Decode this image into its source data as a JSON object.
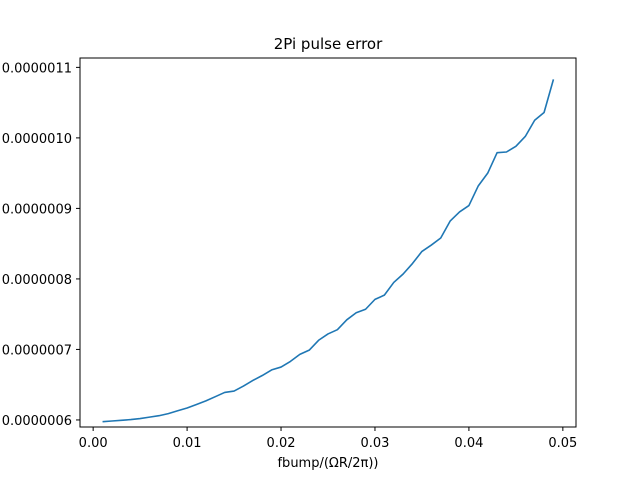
{
  "chart_data": {
    "type": "line",
    "title": "2Pi pulse error",
    "xlabel": "fbump/(ΩR/2π))",
    "ylabel": "",
    "xlim": [
      -0.0014,
      0.0514
    ],
    "ylim": [
      5.9e-07,
      1.1133e-06
    ],
    "grid": false,
    "legend": "none",
    "x_ticks": [
      {
        "value": 0.0,
        "label": "0.00"
      },
      {
        "value": 0.01,
        "label": "0.01"
      },
      {
        "value": 0.02,
        "label": "0.02"
      },
      {
        "value": 0.03,
        "label": "0.03"
      },
      {
        "value": 0.04,
        "label": "0.04"
      },
      {
        "value": 0.05,
        "label": "0.05"
      }
    ],
    "y_ticks": [
      {
        "value": 6e-07,
        "label": "0.0000006"
      },
      {
        "value": 7e-07,
        "label": "0.0000007"
      },
      {
        "value": 8e-07,
        "label": "0.0000008"
      },
      {
        "value": 9e-07,
        "label": "0.0000009"
      },
      {
        "value": 1e-06,
        "label": "0.0000010"
      },
      {
        "value": 1.1e-06,
        "label": "0.0000011"
      }
    ],
    "series": [
      {
        "color": "#1f77b4",
        "x": [
          0.001,
          0.002,
          0.003,
          0.004,
          0.005,
          0.006,
          0.007,
          0.008,
          0.009,
          0.01,
          0.011,
          0.012,
          0.013,
          0.014,
          0.015,
          0.016,
          0.017,
          0.018,
          0.019,
          0.02,
          0.021,
          0.022,
          0.023,
          0.024,
          0.025,
          0.026,
          0.027,
          0.028,
          0.029,
          0.03,
          0.031,
          0.032,
          0.033,
          0.034,
          0.035,
          0.036,
          0.037,
          0.038,
          0.039,
          0.04,
          0.041,
          0.042,
          0.043,
          0.044,
          0.045,
          0.046,
          0.047,
          0.048,
          0.049
        ],
        "y": [
          5.975e-07,
          5.985e-07,
          5.995e-07,
          6.005e-07,
          6.02e-07,
          6.04e-07,
          6.06e-07,
          6.09e-07,
          6.13e-07,
          6.17e-07,
          6.22e-07,
          6.27e-07,
          6.33e-07,
          6.39e-07,
          6.41e-07,
          6.48e-07,
          6.56e-07,
          6.63e-07,
          6.71e-07,
          6.75e-07,
          6.83e-07,
          6.93e-07,
          6.99e-07,
          7.13e-07,
          7.22e-07,
          7.28e-07,
          7.42e-07,
          7.52e-07,
          7.57e-07,
          7.71e-07,
          7.77e-07,
          7.95e-07,
          8.07e-07,
          8.22e-07,
          8.39e-07,
          8.48e-07,
          8.58e-07,
          8.82e-07,
          8.95e-07,
          9.04e-07,
          9.32e-07,
          9.5e-07,
          9.79e-07,
          9.8e-07,
          9.88e-07,
          1.002e-06,
          1.025e-06,
          1.036e-06,
          1.083e-06
        ]
      }
    ]
  }
}
